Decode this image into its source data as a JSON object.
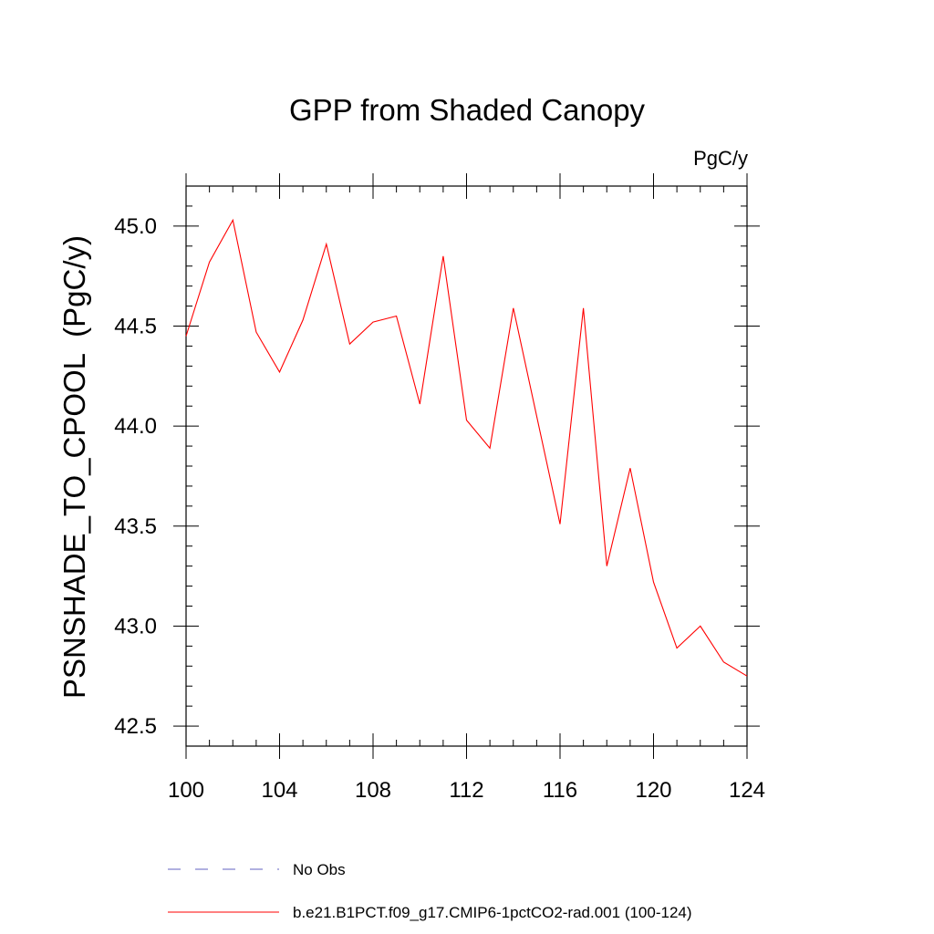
{
  "chart_data": {
    "type": "line",
    "title": "GPP from Shaded Canopy",
    "units_label": "PgC/y",
    "ylabel": "PSNSHADE_TO_CPOOL  (PgC/y)",
    "xlabel": "",
    "xlim": [
      100,
      124
    ],
    "ylim": [
      42.4,
      45.2
    ],
    "x_ticks": [
      100,
      104,
      108,
      112,
      116,
      120,
      124
    ],
    "x_tick_labels": [
      "100",
      "104",
      "108",
      "112",
      "116",
      "120",
      "124"
    ],
    "y_ticks": [
      42.5,
      43.0,
      43.5,
      44.0,
      44.5,
      45.0
    ],
    "y_tick_labels": [
      "42.5",
      "43.0",
      "43.5",
      "44.0",
      "44.5",
      "45.0"
    ],
    "grid": false,
    "legend_position": "bottom",
    "series": [
      {
        "name": "b.e21.B1PCT.f09_g17.CMIP6-1pctCO2-rad.001 (100-124)",
        "color": "#ff0000",
        "style": "solid",
        "x": [
          100,
          101,
          102,
          103,
          104,
          105,
          106,
          107,
          108,
          109,
          110,
          111,
          112,
          113,
          114,
          115,
          116,
          117,
          118,
          119,
          120,
          121,
          122,
          123,
          124
        ],
        "y": [
          44.45,
          44.82,
          45.03,
          44.47,
          44.27,
          44.53,
          44.91,
          44.41,
          44.52,
          44.55,
          44.11,
          44.85,
          44.03,
          43.89,
          44.59,
          44.05,
          43.51,
          44.59,
          43.3,
          43.79,
          43.22,
          42.89,
          43.0,
          42.82,
          42.75
        ]
      }
    ],
    "legend": [
      {
        "label": "No Obs",
        "color": "#6060c0",
        "style": "dashed"
      },
      {
        "label": "b.e21.B1PCT.f09_g17.CMIP6-1pctCO2-rad.001 (100-124)",
        "color": "#ff0000",
        "style": "solid"
      }
    ]
  }
}
